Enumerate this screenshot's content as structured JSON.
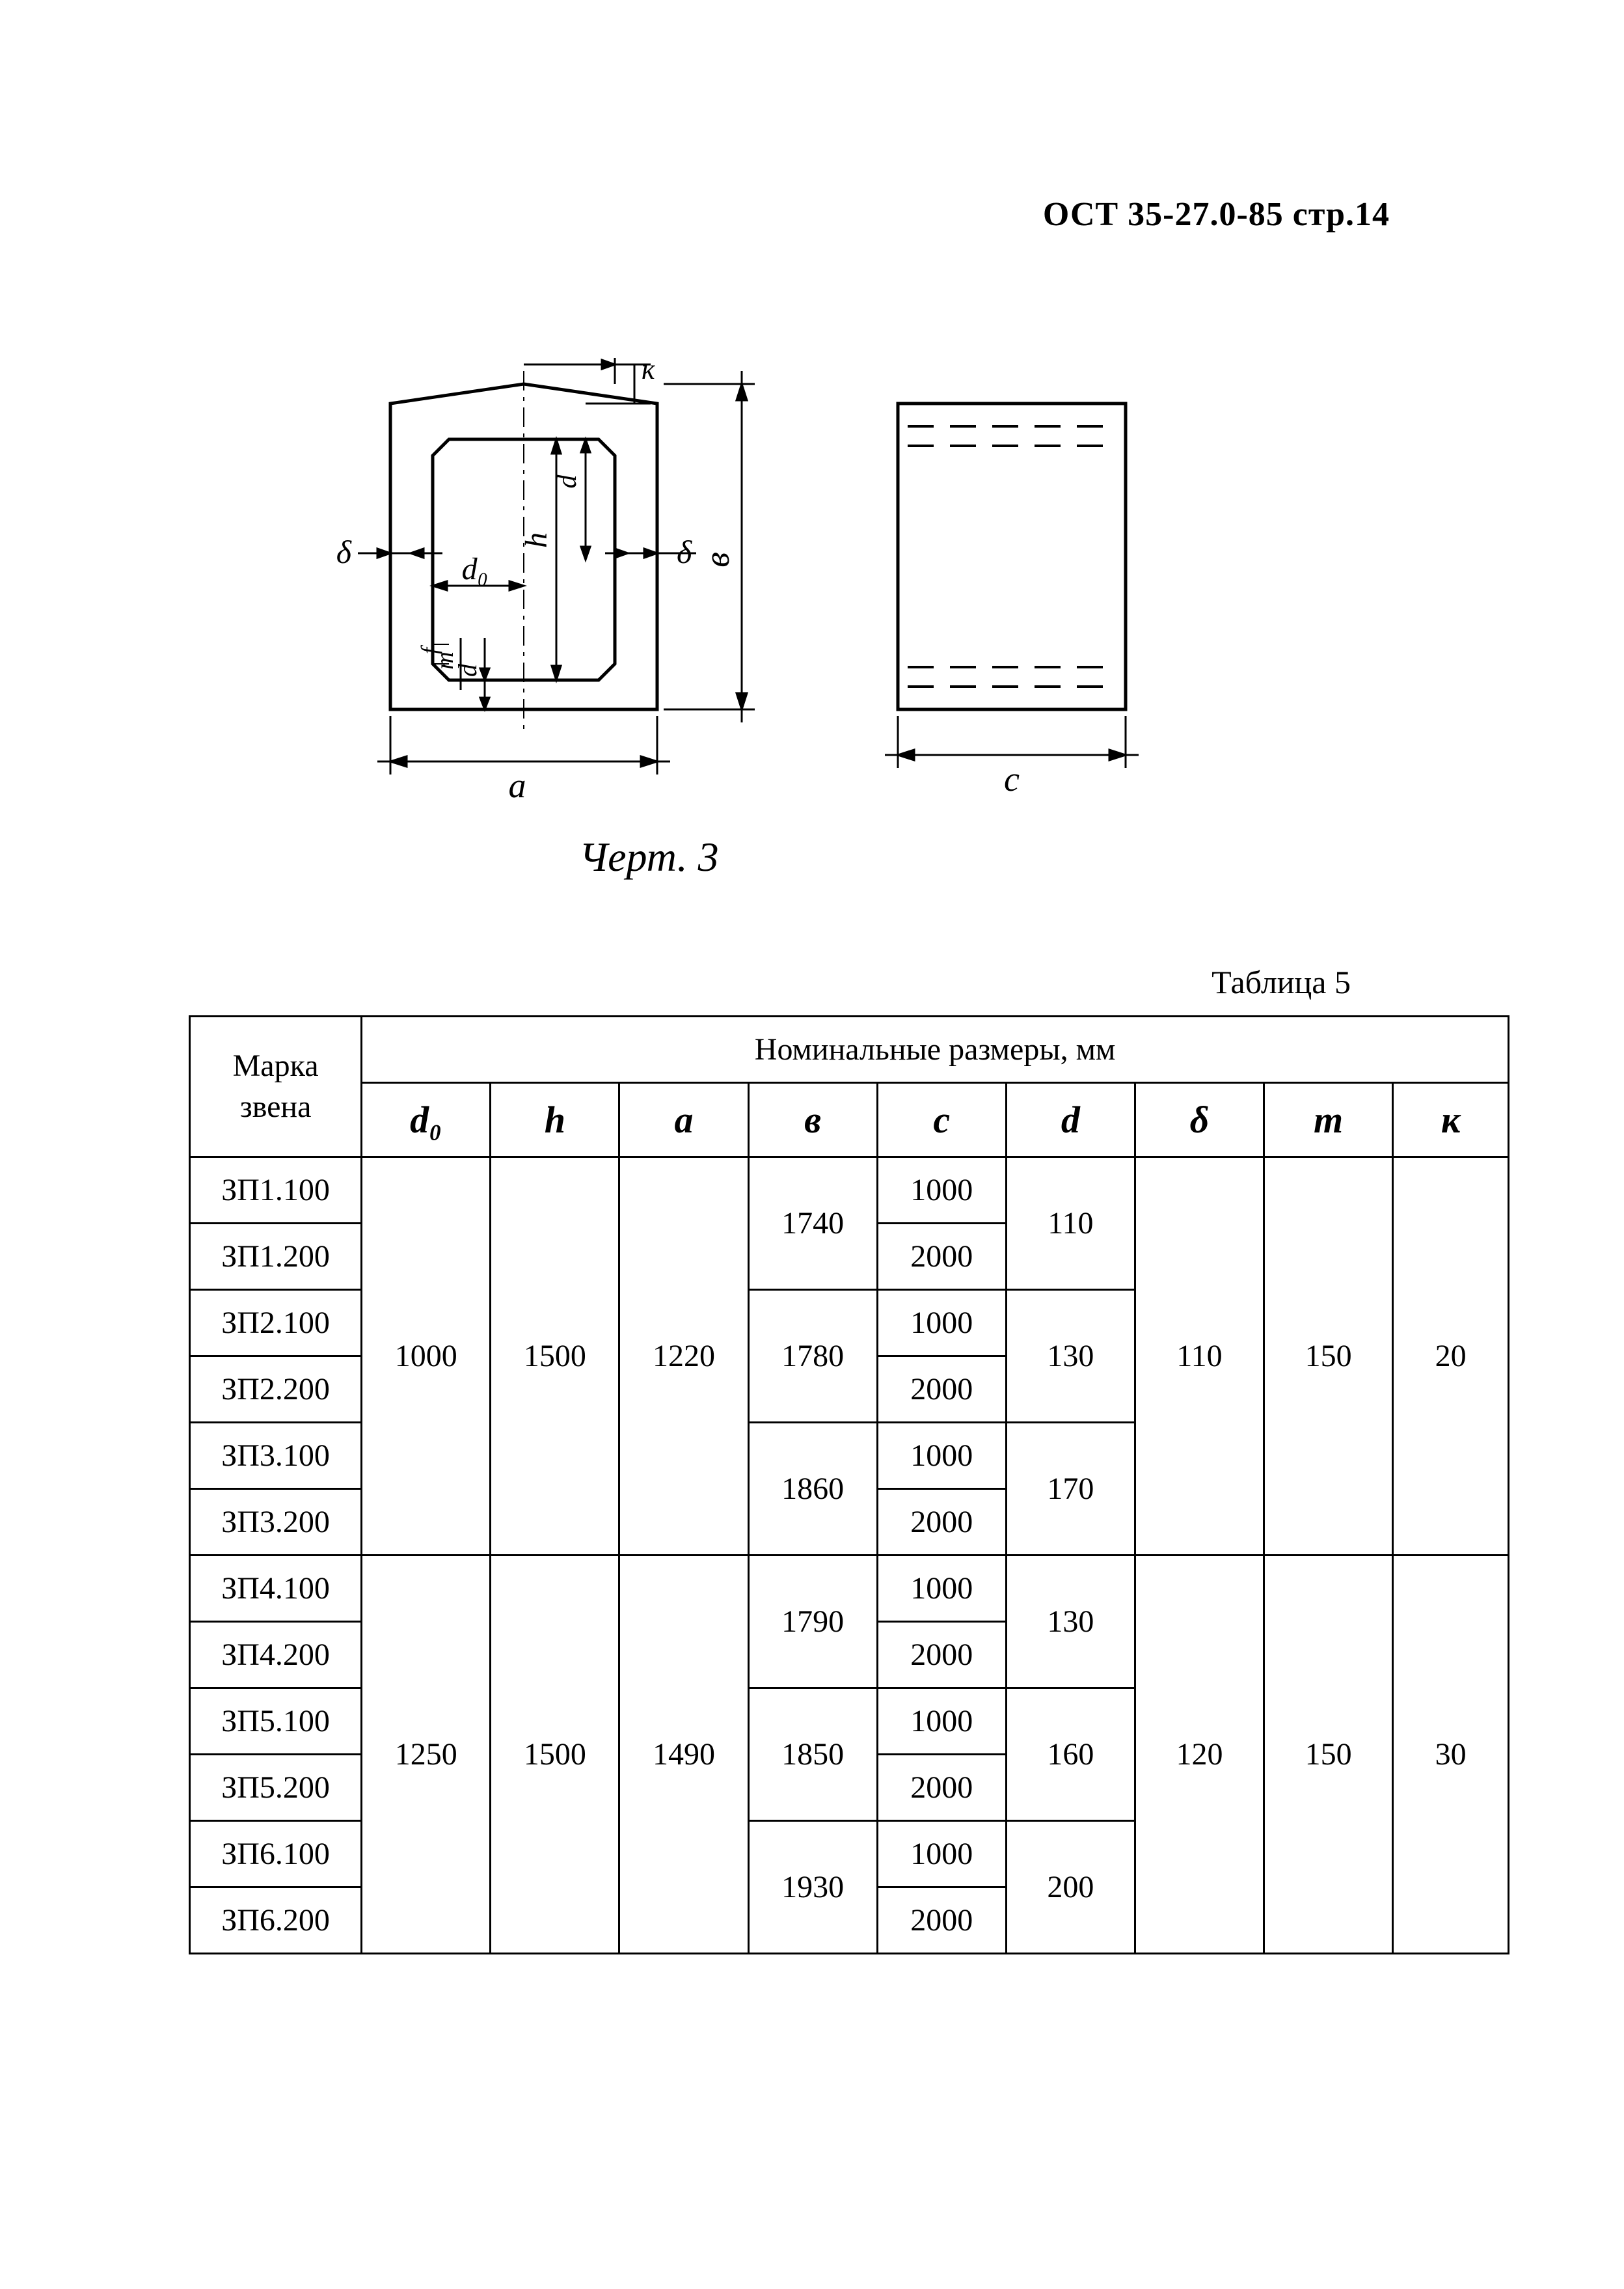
{
  "doc": {
    "header": "ОСТ 35-27.0-85 стр.14",
    "figure_caption": "Черт. 3",
    "table_caption": "Таблица 5"
  },
  "diagram": {
    "labels": {
      "a": "a",
      "v": "в",
      "c": "c",
      "k": "к",
      "delta_left": "δ",
      "delta_right": "δ",
      "d0": "d₀",
      "d_top": "d",
      "d_bot": "d",
      "h": "h",
      "m": "m",
      "f": "f"
    },
    "stroke": "#000000",
    "stroke_width": 3
  },
  "table": {
    "header": {
      "marka_l1": "Марка",
      "marka_l2": "звена",
      "nominal": "Номинальные размеры, мм",
      "cols": [
        "d₀",
        "h",
        "a",
        "в",
        "c",
        "d",
        "δ",
        "m",
        "к"
      ]
    },
    "groups": [
      {
        "d0": "1000",
        "h": "1500",
        "a": "1220",
        "delta": "110",
        "m": "150",
        "k": "20",
        "subgroups": [
          {
            "v": "1740",
            "d": "110",
            "rows": [
              {
                "mark": "ЗП1.100",
                "c": "1000"
              },
              {
                "mark": "ЗП1.200",
                "c": "2000"
              }
            ]
          },
          {
            "v": "1780",
            "d": "130",
            "rows": [
              {
                "mark": "ЗП2.100",
                "c": "1000"
              },
              {
                "mark": "ЗП2.200",
                "c": "2000"
              }
            ]
          },
          {
            "v": "1860",
            "d": "170",
            "rows": [
              {
                "mark": "ЗП3.100",
                "c": "1000"
              },
              {
                "mark": "ЗП3.200",
                "c": "2000"
              }
            ]
          }
        ]
      },
      {
        "d0": "1250",
        "h": "1500",
        "a": "1490",
        "delta": "120",
        "m": "150",
        "k": "30",
        "subgroups": [
          {
            "v": "1790",
            "d": "130",
            "rows": [
              {
                "mark": "ЗП4.100",
                "c": "1000"
              },
              {
                "mark": "ЗП4.200",
                "c": "2000"
              }
            ]
          },
          {
            "v": "1850",
            "d": "160",
            "rows": [
              {
                "mark": "ЗП5.100",
                "c": "1000"
              },
              {
                "mark": "ЗП5.200",
                "c": "2000"
              }
            ]
          },
          {
            "v": "1930",
            "d": "200",
            "rows": [
              {
                "mark": "ЗП6.100",
                "c": "1000"
              },
              {
                "mark": "ЗП6.200",
                "c": "2000"
              }
            ]
          }
        ]
      }
    ]
  }
}
